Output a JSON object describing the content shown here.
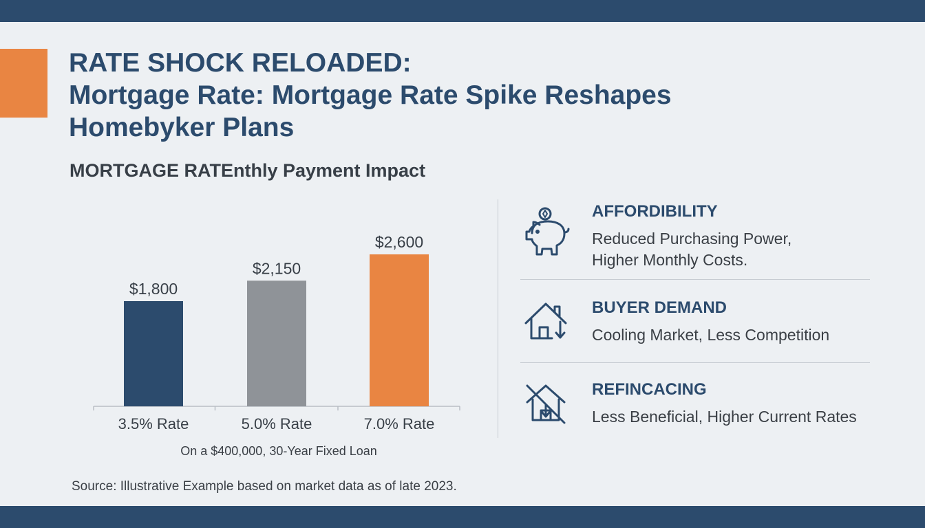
{
  "header": {
    "title_line1": "RATE SHOCK RELOADED:",
    "title_line2": "Mortgage Rate: Mortgage Rate Spike Reshapes",
    "title_line3": "Homebyker Plans"
  },
  "colors": {
    "navy": "#2c4b6d",
    "gray": "#8f9398",
    "orange": "#e98542",
    "background": "#edf0f3"
  },
  "chart_data": {
    "type": "bar",
    "title": "MORTGAGE RATEnthly Payment Impact",
    "categories": [
      "3.5% Rate",
      "5.0% Rate",
      "7.0% Rate"
    ],
    "values": [
      1800,
      2150,
      2600
    ],
    "value_labels": [
      "$1,800",
      "$2,150",
      "$2,600"
    ],
    "bar_colors": [
      "#2c4b6d",
      "#8f9398",
      "#e98542"
    ],
    "xlabel": "On a $400,000, 30-Year Fixed Loan",
    "ylabel": "",
    "ylim": [
      0,
      2600
    ],
    "grid": false,
    "legend": "none"
  },
  "panels": [
    {
      "icon": "piggy-bank-icon",
      "title": "AFFORDIBILITY",
      "lines": [
        "Reduced Purchasing Power,",
        "Higher Monthly Costs."
      ]
    },
    {
      "icon": "house-down-arrow-icon",
      "title": "BUYER DEMAND",
      "lines": [
        "Cooling Market, Less Competition"
      ]
    },
    {
      "icon": "house-crossed-icon",
      "title": "REFINCACING",
      "lines": [
        "Less Beneficial, Higher Current Rates"
      ]
    }
  ],
  "source": "Source: Illustrative Example based on market data as of late 2023."
}
